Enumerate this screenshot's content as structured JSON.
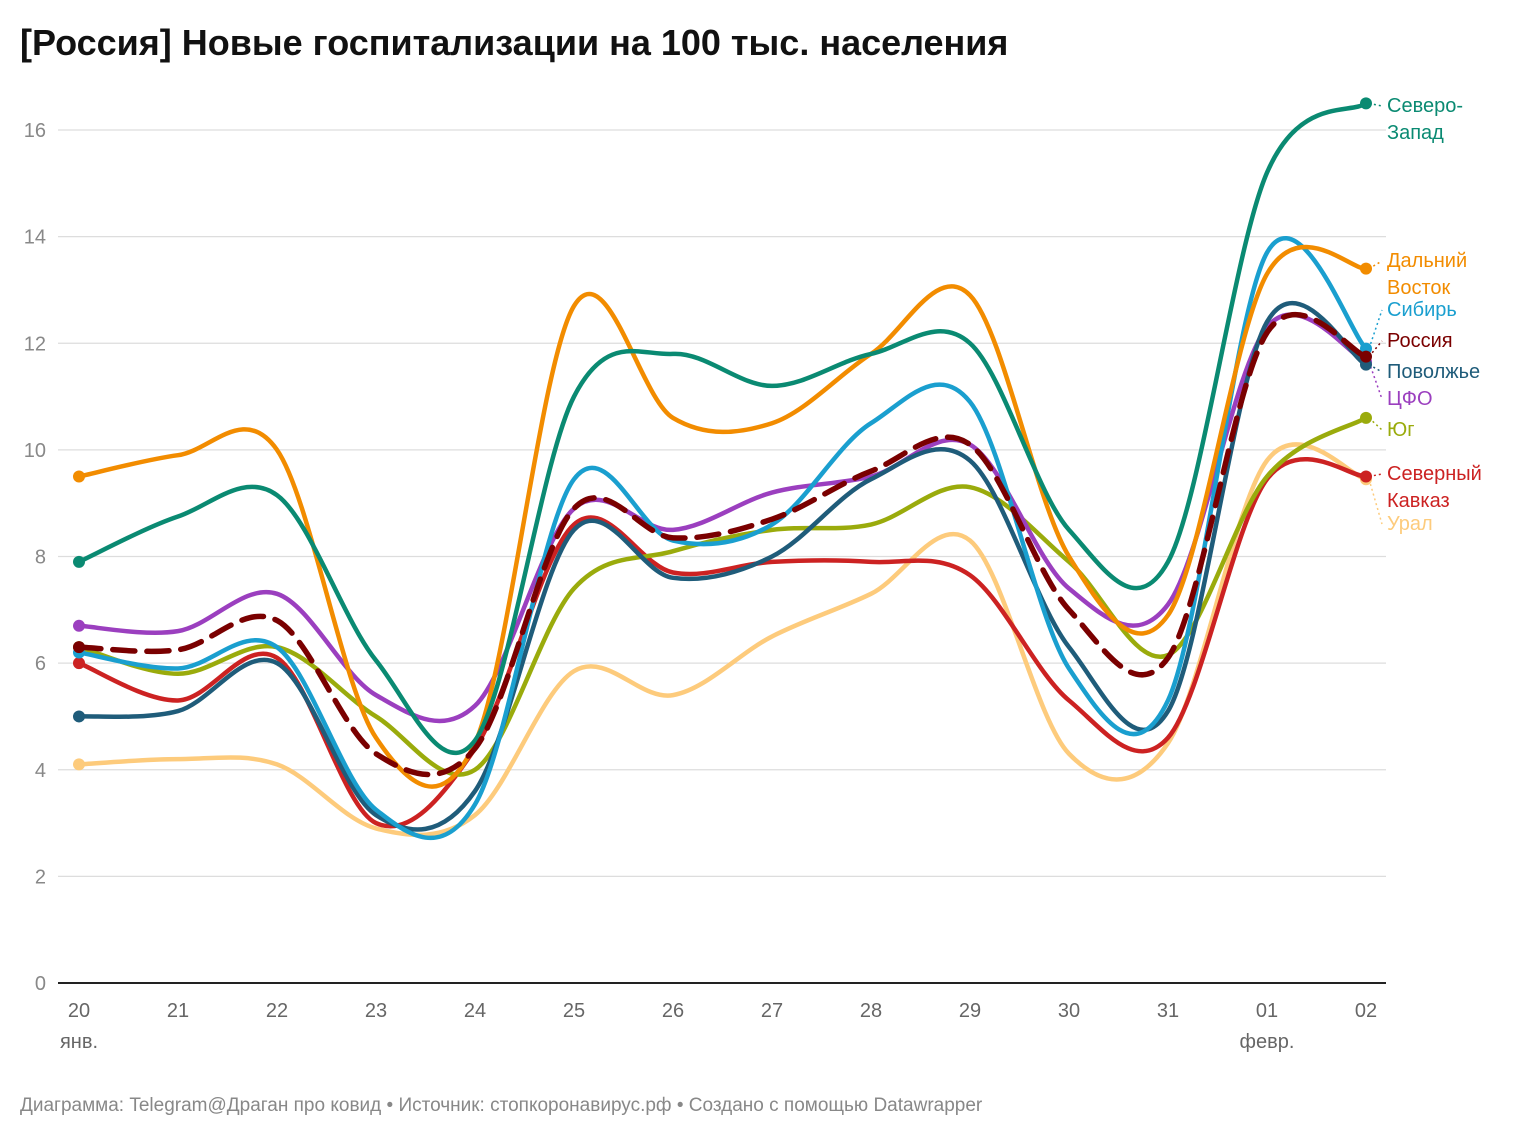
{
  "chart_data": {
    "type": "line",
    "title": "[Россия] Новые госпитализации на 100 тыс. населения",
    "categories": [
      "20",
      "21",
      "22",
      "23",
      "24",
      "25",
      "26",
      "27",
      "28",
      "29",
      "30",
      "31",
      "01",
      "02"
    ],
    "x_month_labels": [
      "янв.",
      null,
      null,
      null,
      null,
      null,
      null,
      null,
      null,
      null,
      null,
      null,
      "февр.",
      null
    ],
    "ylim": [
      0,
      16
    ],
    "yticks": [
      0,
      2,
      4,
      6,
      8,
      10,
      12,
      14,
      16
    ],
    "grid": true,
    "series": [
      {
        "name": "Северо-Запад",
        "color": "#0a8a72",
        "values": [
          7.9,
          8.75,
          9.15,
          6.05,
          4.55,
          11.0,
          11.8,
          11.2,
          11.8,
          12.0,
          8.5,
          7.9,
          15.2,
          16.5
        ]
      },
      {
        "name": "Дальний Восток",
        "color": "#f28c00",
        "values": [
          9.5,
          9.9,
          10.0,
          4.6,
          4.5,
          12.7,
          10.6,
          10.5,
          11.8,
          12.9,
          8.0,
          6.9,
          13.3,
          13.4
        ]
      },
      {
        "name": "Сибирь",
        "color": "#1a9fcf",
        "values": [
          6.2,
          5.9,
          6.3,
          3.25,
          3.35,
          9.45,
          8.3,
          8.6,
          10.5,
          10.9,
          5.9,
          5.3,
          13.7,
          11.9
        ]
      },
      {
        "name": "Россия",
        "color": "#7a0000",
        "dashed": true,
        "values": [
          6.3,
          6.25,
          6.8,
          4.3,
          4.4,
          8.9,
          8.35,
          8.7,
          9.6,
          10.1,
          7.0,
          6.1,
          12.2,
          11.75
        ]
      },
      {
        "name": "Поволжье",
        "color": "#1f5c7a",
        "values": [
          5.0,
          5.1,
          6.0,
          3.15,
          3.6,
          8.5,
          7.6,
          8.0,
          9.45,
          9.8,
          6.3,
          5.1,
          12.4,
          11.6
        ]
      },
      {
        "name": "ЦФО",
        "color": "#9b3fbf",
        "values": [
          6.7,
          6.6,
          7.3,
          5.4,
          5.2,
          8.9,
          8.5,
          9.2,
          9.5,
          10.1,
          7.4,
          7.1,
          12.3,
          11.65
        ]
      },
      {
        "name": "Юг",
        "color": "#9aab0c",
        "values": [
          6.3,
          5.8,
          6.3,
          5.0,
          4.0,
          7.4,
          8.1,
          8.5,
          8.6,
          9.3,
          7.9,
          6.15,
          9.5,
          10.6
        ]
      },
      {
        "name": "Северный Кавказ",
        "color": "#cc2222",
        "values": [
          6.0,
          5.3,
          6.1,
          3.0,
          4.4,
          8.6,
          7.7,
          7.9,
          7.9,
          7.65,
          5.3,
          4.6,
          9.45,
          9.5
        ]
      },
      {
        "name": "Урал",
        "color": "#fdcb7c",
        "values": [
          4.1,
          4.2,
          4.1,
          2.9,
          3.15,
          5.85,
          5.4,
          6.5,
          7.3,
          8.3,
          4.3,
          4.5,
          9.8,
          9.45
        ]
      }
    ],
    "notes": "Диаграмма: Telegram@Драган про ковид • Источник: стопкоронавирус.рф • Создано с помощью Datawrapper"
  }
}
